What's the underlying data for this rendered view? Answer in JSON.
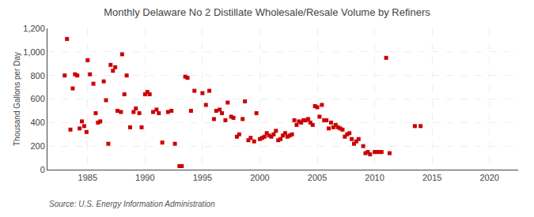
{
  "chart_data": {
    "type": "scatter",
    "title": "Monthly Delaware No 2 Distillate Wholesale/Resale Volume by Refiners",
    "y_label": "Thousand Gallons per Day",
    "annotations": [
      "Source: U.S. Energy Information Administration"
    ],
    "color": "#cc0000",
    "marker": "square",
    "grid": true,
    "xlim": [
      1981.5,
      2022.5
    ],
    "ylim": [
      0,
      1200
    ],
    "xticks": [
      1985,
      1990,
      1995,
      2000,
      2005,
      2010,
      2015,
      2020
    ],
    "yticks": [
      0,
      200,
      400,
      600,
      800,
      {
        "value": 1000,
        "label": "1,000"
      },
      {
        "value": 1200,
        "label": "1,200"
      }
    ],
    "x": [
      1983.0,
      1983.2,
      1983.5,
      1983.7,
      1983.9,
      1984.1,
      1984.3,
      1984.5,
      1984.7,
      1984.9,
      1985.0,
      1985.2,
      1985.5,
      1985.7,
      1985.9,
      1986.1,
      1986.4,
      1986.6,
      1986.8,
      1987.0,
      1987.2,
      1987.4,
      1987.6,
      1987.9,
      1988.0,
      1988.2,
      1988.4,
      1988.7,
      1989.0,
      1989.2,
      1989.5,
      1989.7,
      1990.0,
      1990.2,
      1990.4,
      1990.7,
      1991.0,
      1991.2,
      1991.5,
      1992.0,
      1992.3,
      1992.6,
      1993.0,
      1993.2,
      1993.5,
      1993.7,
      1994.0,
      1994.3,
      1995.0,
      1995.3,
      1995.6,
      1996.0,
      1996.2,
      1996.5,
      1996.7,
      1997.0,
      1997.2,
      1997.5,
      1997.7,
      1998.0,
      1998.2,
      1998.5,
      1998.7,
      1999.0,
      1999.2,
      1999.5,
      1999.7,
      2000.0,
      2000.2,
      2000.4,
      2000.6,
      2000.8,
      2001.0,
      2001.2,
      2001.4,
      2001.6,
      2001.8,
      2002.0,
      2002.2,
      2002.4,
      2002.6,
      2002.8,
      2003.0,
      2003.2,
      2003.4,
      2003.6,
      2003.8,
      2004.0,
      2004.2,
      2004.4,
      2004.6,
      2004.8,
      2005.0,
      2005.2,
      2005.4,
      2005.6,
      2005.8,
      2006.0,
      2006.2,
      2006.4,
      2006.6,
      2006.8,
      2007.0,
      2007.2,
      2007.4,
      2007.6,
      2007.8,
      2008.0,
      2008.2,
      2008.4,
      2008.6,
      2009.0,
      2009.2,
      2009.4,
      2009.6,
      2010.0,
      2010.2,
      2010.4,
      2010.6,
      2011.0,
      2011.3,
      2013.5,
      2014.0
    ],
    "values": [
      800,
      1110,
      340,
      690,
      810,
      800,
      350,
      410,
      370,
      320,
      930,
      810,
      730,
      480,
      400,
      410,
      750,
      590,
      220,
      890,
      840,
      870,
      500,
      490,
      980,
      640,
      800,
      360,
      490,
      520,
      480,
      360,
      640,
      660,
      640,
      490,
      510,
      480,
      230,
      490,
      500,
      220,
      30,
      30,
      790,
      780,
      500,
      670,
      650,
      550,
      670,
      430,
      500,
      510,
      480,
      420,
      570,
      450,
      440,
      280,
      300,
      430,
      580,
      250,
      270,
      240,
      480,
      260,
      270,
      280,
      310,
      290,
      280,
      300,
      330,
      250,
      260,
      290,
      310,
      280,
      290,
      300,
      420,
      380,
      410,
      400,
      420,
      420,
      430,
      400,
      380,
      540,
      530,
      450,
      550,
      420,
      420,
      350,
      400,
      360,
      380,
      360,
      350,
      340,
      280,
      300,
      310,
      260,
      220,
      240,
      260,
      200,
      140,
      150,
      130,
      150,
      150,
      150,
      150,
      950,
      140,
      370,
      370
    ]
  }
}
